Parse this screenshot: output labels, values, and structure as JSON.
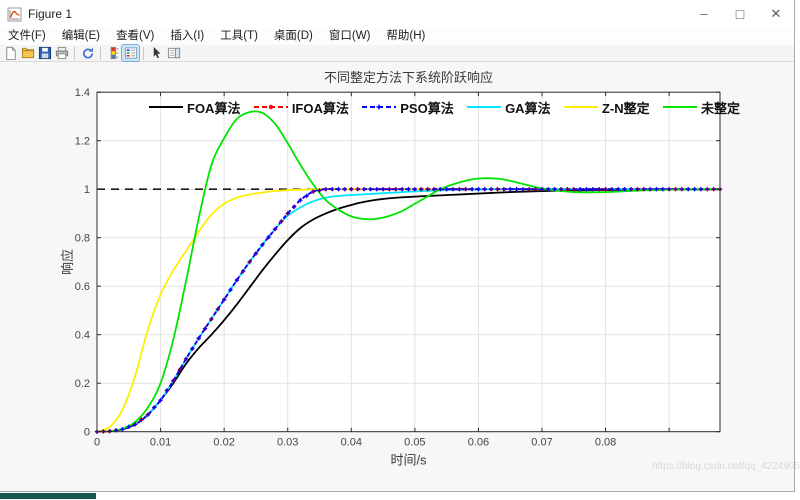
{
  "window": {
    "title": "Figure 1",
    "controls": {
      "minimize": "–",
      "maximize": "□",
      "close": "✕"
    }
  },
  "menu_bar": {
    "items": [
      "文件(F)",
      "编辑(E)",
      "查看(V)",
      "插入(I)",
      "工具(T)",
      "桌面(D)",
      "窗口(W)",
      "帮助(H)"
    ]
  },
  "toolbar": {
    "icons": [
      {
        "name": "new-figure-icon",
        "type": "new",
        "active": false
      },
      {
        "name": "open-file-icon",
        "type": "open",
        "active": false
      },
      {
        "name": "save-figure-icon",
        "type": "save",
        "active": false
      },
      {
        "name": "print-figure-icon",
        "type": "print",
        "active": false
      },
      {
        "name": "separator",
        "type": "separator"
      },
      {
        "name": "rotate-3d-icon",
        "type": "rotate",
        "active": false
      },
      {
        "name": "separator",
        "type": "separator"
      },
      {
        "name": "insert-colorbar-icon",
        "type": "colorbar",
        "active": false
      },
      {
        "name": "insert-legend-icon",
        "type": "legend",
        "active": true
      },
      {
        "name": "separator",
        "type": "separator"
      },
      {
        "name": "edit-plot-icon",
        "type": "cursor",
        "active": false
      },
      {
        "name": "property-inspector-icon",
        "type": "panel",
        "active": false
      }
    ]
  },
  "watermark": "https://blog.csdn.net/qq_42249050",
  "chart_data": {
    "type": "line",
    "title": "不同整定方法下系统阶跃响应",
    "xlabel": "时间/s",
    "ylabel": "响应",
    "xlim": [
      0,
      0.098
    ],
    "ylim": [
      0,
      1.4
    ],
    "xticks": [
      0,
      0.01,
      0.02,
      0.03,
      0.04,
      0.05,
      0.06,
      0.07,
      0.08
    ],
    "xtick_labels": [
      "0",
      "0.01",
      "0.02",
      "0.03",
      "0.04",
      "0.05",
      "0.06",
      "0.07",
      "0.08"
    ],
    "xtick_unlabeled": [
      0.09
    ],
    "yticks": [
      0,
      0.2,
      0.4,
      0.6,
      0.8,
      1,
      1.2,
      1.4
    ],
    "ytick_labels": [
      "0",
      "0.2",
      "0.4",
      "0.6",
      "0.8",
      "1",
      "1.2",
      "1.4"
    ],
    "grid": true,
    "legend_position": "top-inside-horizontal",
    "reference_line": {
      "y": 1.0,
      "style": "dashed",
      "color": "#1a1a1a"
    },
    "t_step": 0.002,
    "series": [
      {
        "name": "FOA算法",
        "color": "#000000",
        "style": "solid",
        "marker": "none",
        "values": [
          0,
          0.002,
          0.01,
          0.03,
          0.07,
          0.13,
          0.2,
          0.28,
          0.345,
          0.4,
          0.46,
          0.525,
          0.595,
          0.665,
          0.73,
          0.79,
          0.84,
          0.875,
          0.9,
          0.92,
          0.935,
          0.9475,
          0.9565,
          0.9625,
          0.9665,
          0.9695,
          0.972,
          0.9745,
          0.977,
          0.9795,
          0.982,
          0.9845,
          0.987,
          0.989,
          0.9905,
          0.992,
          0.9935,
          0.9945,
          0.9955,
          0.996,
          0.9965,
          0.997,
          0.9975,
          0.998,
          0.998,
          0.9985,
          0.999,
          0.999,
          0.999,
          0.9995
        ]
      },
      {
        "name": "IFOA算法",
        "color": "#ff0000",
        "style": "dashed",
        "marker": "dot",
        "values": [
          0,
          0.002,
          0.01,
          0.03,
          0.07,
          0.13,
          0.21,
          0.3,
          0.385,
          0.465,
          0.545,
          0.625,
          0.7,
          0.77,
          0.835,
          0.9,
          0.955,
          0.99,
          1,
          1,
          1,
          1,
          1,
          1,
          1,
          1,
          1,
          1,
          1,
          1,
          1,
          1,
          1,
          1,
          1,
          1,
          1,
          1,
          1,
          1,
          1,
          1,
          1,
          1,
          1,
          1,
          1,
          1,
          1,
          1
        ]
      },
      {
        "name": "PSO算法",
        "color": "#0000ff",
        "style": "dashed",
        "marker": "plus",
        "values": [
          0,
          0.002,
          0.01,
          0.03,
          0.07,
          0.13,
          0.21,
          0.3,
          0.385,
          0.465,
          0.545,
          0.625,
          0.7,
          0.77,
          0.835,
          0.9,
          0.955,
          0.99,
          1,
          1,
          1,
          1,
          1,
          1,
          1,
          1,
          1,
          1,
          1,
          1,
          1,
          1,
          1,
          1,
          1,
          1,
          1,
          1,
          1,
          1,
          1,
          1,
          1,
          1,
          1,
          1,
          1,
          1,
          1,
          1
        ]
      },
      {
        "name": "GA算法",
        "color": "#00e5ff",
        "style": "solid",
        "marker": "none",
        "values": [
          0,
          0.002,
          0.01,
          0.03,
          0.07,
          0.13,
          0.21,
          0.3,
          0.385,
          0.465,
          0.545,
          0.625,
          0.7,
          0.77,
          0.835,
          0.89,
          0.925,
          0.95,
          0.965,
          0.972,
          0.976,
          0.979,
          0.982,
          0.985,
          0.988,
          0.991,
          0.993,
          0.995,
          0.997,
          0.998,
          0.999,
          1,
          1,
          1,
          1,
          1,
          1,
          1,
          1,
          1,
          1,
          1,
          1,
          1,
          1,
          1,
          1,
          1,
          1,
          1
        ]
      },
      {
        "name": "Z-N整定",
        "color": "#ffee00",
        "style": "solid",
        "marker": "none",
        "values": [
          0,
          0.02,
          0.09,
          0.23,
          0.42,
          0.565,
          0.665,
          0.745,
          0.825,
          0.895,
          0.94,
          0.965,
          0.978,
          0.986,
          0.992,
          0.996,
          0.998,
          0.999,
          1,
          1,
          1,
          1,
          1,
          1,
          1,
          1,
          1,
          1,
          1,
          1,
          1,
          1,
          1,
          1,
          1,
          1,
          1,
          1,
          1,
          1,
          1,
          1,
          1,
          1,
          1,
          1,
          1,
          1,
          1,
          1
        ]
      },
      {
        "name": "未整定",
        "color": "#00e400",
        "style": "solid",
        "marker": "none",
        "values": [
          0,
          0.002,
          0.012,
          0.04,
          0.1,
          0.2,
          0.38,
          0.62,
          0.88,
          1.1,
          1.21,
          1.29,
          1.318,
          1.315,
          1.27,
          1.19,
          1.1,
          1.02,
          0.955,
          0.915,
          0.888,
          0.877,
          0.878,
          0.89,
          0.91,
          0.94,
          0.97,
          1,
          1.02,
          1.035,
          1.044,
          1.045,
          1.04,
          1.028,
          1.015,
          1.003,
          0.995,
          0.99,
          0.987,
          0.987,
          0.988,
          0.99,
          0.993,
          0.995,
          0.997,
          0.998,
          0.999,
          0.9995,
          1,
          1
        ]
      }
    ]
  }
}
